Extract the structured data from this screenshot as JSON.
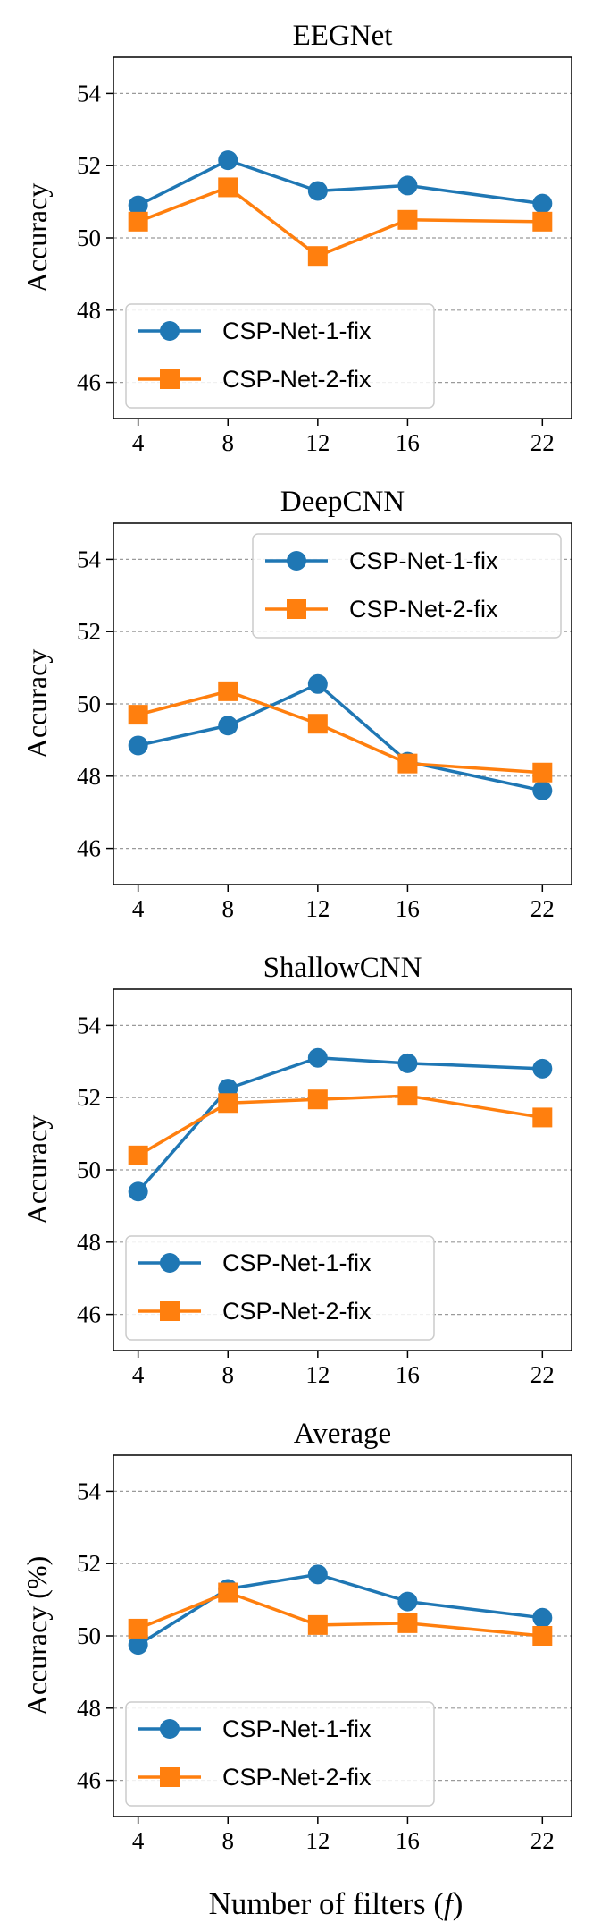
{
  "figure": {
    "xlabel_main": "Number of filters (",
    "xlabel_var": "f",
    "xlabel_close": ")"
  },
  "series_style": [
    {
      "name": "CSP-Net-1-fix",
      "color": "#1f77b4",
      "marker": "circle"
    },
    {
      "name": "CSP-Net-2-fix",
      "color": "#ff7f0e",
      "marker": "square"
    }
  ],
  "chart_data": [
    {
      "type": "line",
      "title": "EEGNet",
      "xlabel": "",
      "ylabel": "Accuracy",
      "x": [
        4,
        8,
        12,
        16,
        22
      ],
      "xticks": [
        "4",
        "8",
        "12",
        "16",
        "22"
      ],
      "yticks": [
        "46",
        "48",
        "50",
        "52",
        "54"
      ],
      "ylim": [
        45,
        55
      ],
      "grid": "horizontal dashed",
      "legend": "lower-left",
      "series": [
        {
          "name": "CSP-Net-1-fix",
          "values": [
            50.9,
            52.15,
            51.3,
            51.45,
            50.95
          ]
        },
        {
          "name": "CSP-Net-2-fix",
          "values": [
            50.45,
            51.4,
            49.5,
            50.5,
            50.45
          ]
        }
      ]
    },
    {
      "type": "line",
      "title": "DeepCNN",
      "xlabel": "",
      "ylabel": "Accuracy",
      "x": [
        4,
        8,
        12,
        16,
        22
      ],
      "xticks": [
        "4",
        "8",
        "12",
        "16",
        "22"
      ],
      "yticks": [
        "46",
        "48",
        "50",
        "52",
        "54"
      ],
      "ylim": [
        45,
        55
      ],
      "grid": "horizontal dashed",
      "legend": "upper-right",
      "series": [
        {
          "name": "CSP-Net-1-fix",
          "values": [
            48.85,
            49.4,
            50.55,
            48.4,
            47.6
          ]
        },
        {
          "name": "CSP-Net-2-fix",
          "values": [
            49.7,
            50.35,
            49.45,
            48.35,
            48.1
          ]
        }
      ]
    },
    {
      "type": "line",
      "title": "ShallowCNN",
      "xlabel": "",
      "ylabel": "Accuracy",
      "x": [
        4,
        8,
        12,
        16,
        22
      ],
      "xticks": [
        "4",
        "8",
        "12",
        "16",
        "22"
      ],
      "yticks": [
        "46",
        "48",
        "50",
        "52",
        "54"
      ],
      "ylim": [
        45,
        55
      ],
      "grid": "horizontal dashed",
      "legend": "lower-left",
      "series": [
        {
          "name": "CSP-Net-1-fix",
          "values": [
            49.4,
            52.25,
            53.1,
            52.95,
            52.8
          ]
        },
        {
          "name": "CSP-Net-2-fix",
          "values": [
            50.4,
            51.85,
            51.95,
            52.05,
            51.45
          ]
        }
      ]
    },
    {
      "type": "line",
      "title": "Average",
      "xlabel": "Number of filters (f)",
      "ylabel": "Accuracy (%)",
      "x": [
        4,
        8,
        12,
        16,
        22
      ],
      "xticks": [
        "4",
        "8",
        "12",
        "16",
        "22"
      ],
      "yticks": [
        "46",
        "48",
        "50",
        "52",
        "54"
      ],
      "ylim": [
        45,
        55
      ],
      "grid": "horizontal dashed",
      "legend": "lower-left",
      "series": [
        {
          "name": "CSP-Net-1-fix",
          "values": [
            49.75,
            51.3,
            51.7,
            50.95,
            50.5
          ]
        },
        {
          "name": "CSP-Net-2-fix",
          "values": [
            50.2,
            51.2,
            50.3,
            50.35,
            50.0
          ]
        }
      ]
    }
  ]
}
